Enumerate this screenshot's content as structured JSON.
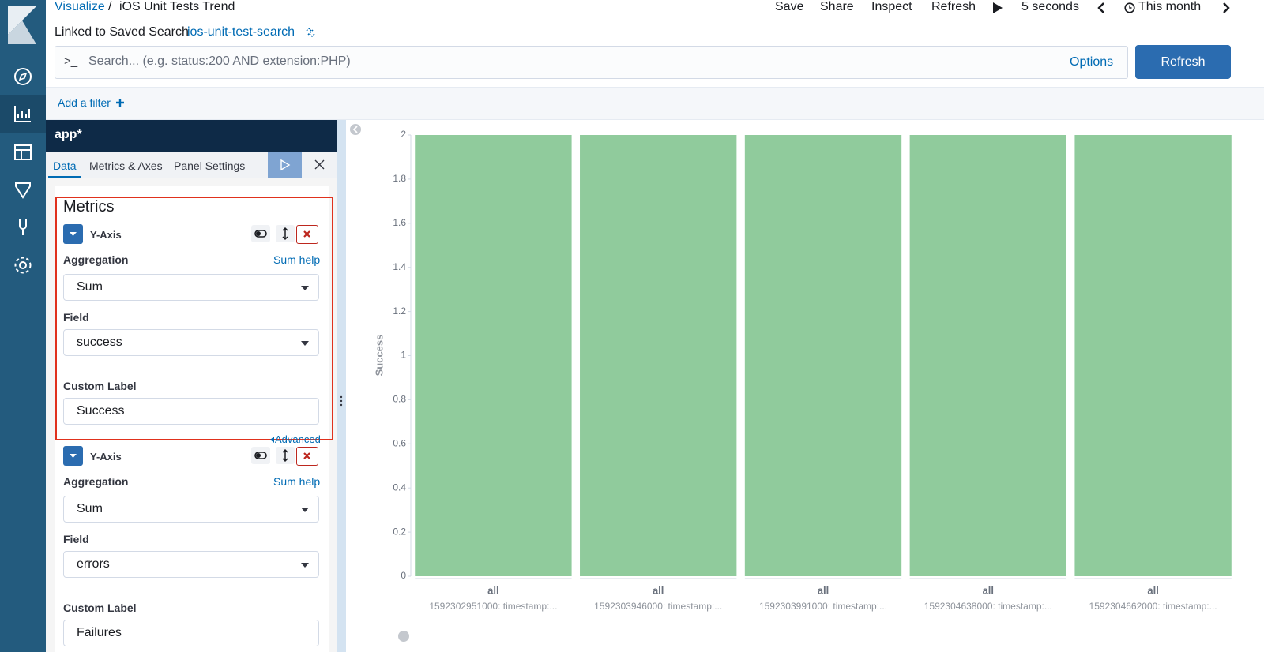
{
  "header": {
    "breadcrumb": "Visualize",
    "separator": "/",
    "title": "iOS Unit Tests Trend",
    "actions": [
      "Save",
      "Share",
      "Inspect",
      "Refresh"
    ],
    "interval": "5 seconds",
    "time": "This month",
    "linked_label": "Linked to Saved Search",
    "linked_search": "ios-unit-test-search"
  },
  "search": {
    "prompt": ">_",
    "placeholder": "Search... (e.g. status:200 AND extension:PHP)",
    "options": "Options",
    "button": "Refresh"
  },
  "filter": {
    "add": "Add a filter"
  },
  "panel": {
    "index": "app*",
    "tabs": [
      "Data",
      "Metrics & Axes",
      "Panel Settings"
    ],
    "section": "Metrics",
    "metrics": [
      {
        "title": "Y-Axis",
        "aggregation_label": "Aggregation",
        "help": "Sum help",
        "aggregation": "Sum",
        "field_label": "Field",
        "field": "success",
        "custom_label_label": "Custom Label",
        "custom_label": "Success",
        "advanced": "Advanced"
      },
      {
        "title": "Y-Axis",
        "aggregation_label": "Aggregation",
        "help": "Sum help",
        "aggregation": "Sum",
        "field_label": "Field",
        "field": "errors",
        "custom_label_label": "Custom Label",
        "custom_label": "Failures"
      }
    ]
  },
  "chart_data": {
    "type": "bar",
    "y_label": "Success",
    "group_labels": [
      "all",
      "all",
      "all",
      "all",
      "all"
    ],
    "categories": [
      "1592302951000: timestamp:...",
      "1592303946000: timestamp:...",
      "1592303991000: timestamp:...",
      "1592304638000: timestamp:...",
      "1592304662000: timestamp:..."
    ],
    "values": [
      2,
      2,
      2,
      2,
      2
    ],
    "color": "#90cb9c",
    "ylim": [
      0,
      2
    ],
    "yticks": [
      0,
      0.2,
      0.4,
      0.6,
      0.8,
      1,
      1.2,
      1.4,
      1.6,
      1.8,
      2
    ],
    "grid": false
  }
}
